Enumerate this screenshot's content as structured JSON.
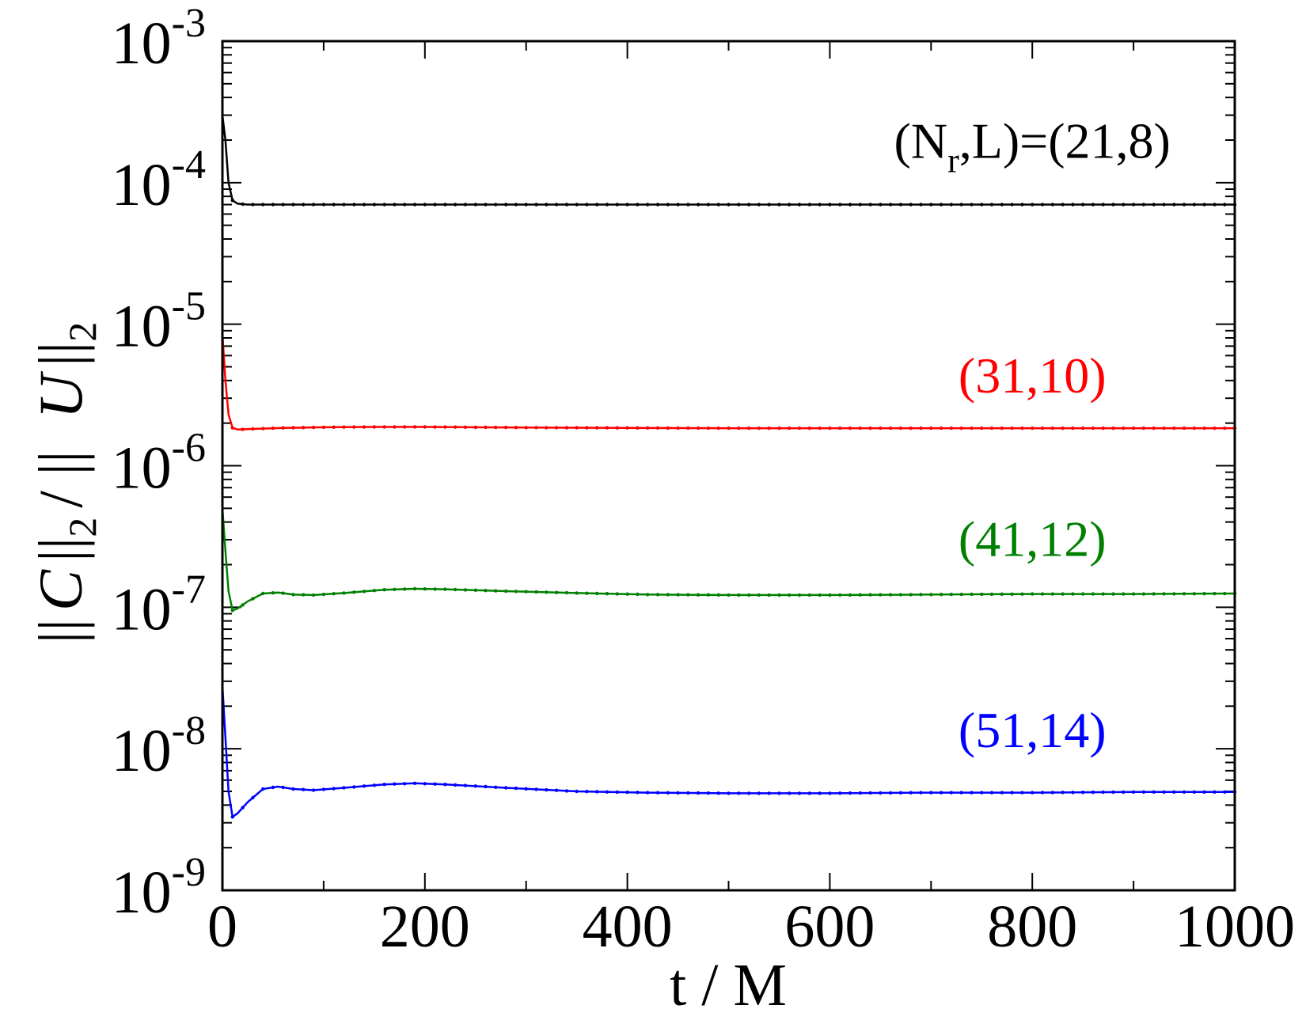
{
  "chart_data": {
    "type": "line",
    "xlabel": "t / M",
    "ylabel": {
      "prefix": "||",
      "c_symbol": "C",
      "mid": "||",
      "sub1": "2",
      "slash": "/ ||",
      "u_symbol": "U",
      "suffix": "||",
      "sub2": "2"
    },
    "xlim": [
      0,
      1000
    ],
    "ylim": [
      1e-09,
      0.001
    ],
    "yscale": "log",
    "xticks": [
      {
        "value": 0,
        "label": "0"
      },
      {
        "value": 200,
        "label": "200"
      },
      {
        "value": 400,
        "label": "400"
      },
      {
        "value": 600,
        "label": "600"
      },
      {
        "value": 800,
        "label": "800"
      },
      {
        "value": 1000,
        "label": "1000"
      }
    ],
    "yticks": [
      {
        "value": 0.001,
        "base": "10",
        "exp": "-3"
      },
      {
        "value": 0.0001,
        "base": "10",
        "exp": "-4"
      },
      {
        "value": 1e-05,
        "base": "10",
        "exp": "-5"
      },
      {
        "value": 1e-06,
        "base": "10",
        "exp": "-6"
      },
      {
        "value": 1e-07,
        "base": "10",
        "exp": "-7"
      },
      {
        "value": 1e-08,
        "base": "10",
        "exp": "-8"
      },
      {
        "value": 1e-09,
        "base": "10",
        "exp": "-9"
      }
    ],
    "grid": false,
    "series": [
      {
        "id": "nr21",
        "color": "#000000",
        "label_parts": [
          "(N",
          "r",
          ",L)=(21,8)"
        ],
        "label_anchor": {
          "x": 800,
          "y": 0.00015
        },
        "points": [
          [
            0,
            0.0003
          ],
          [
            3,
            0.0002
          ],
          [
            6,
            0.0001
          ],
          [
            10,
            7.5e-05
          ],
          [
            15,
            7.1e-05
          ],
          [
            25,
            7e-05
          ],
          [
            50,
            7e-05
          ],
          [
            100,
            7e-05
          ],
          [
            200,
            7e-05
          ],
          [
            300,
            7e-05
          ],
          [
            400,
            7e-05
          ],
          [
            500,
            7e-05
          ],
          [
            600,
            7e-05
          ],
          [
            700,
            7e-05
          ],
          [
            800,
            7e-05
          ],
          [
            900,
            7e-05
          ],
          [
            1000,
            7e-05
          ]
        ]
      },
      {
        "id": "nr31",
        "color": "#ff0000",
        "label_parts": [
          "(31,10)"
        ],
        "label_anchor": {
          "x": 800,
          "y": 3.3e-06
        },
        "points": [
          [
            0,
            8.5e-06
          ],
          [
            3,
            4e-06
          ],
          [
            6,
            2.3e-06
          ],
          [
            10,
            1.85e-06
          ],
          [
            15,
            1.8e-06
          ],
          [
            30,
            1.82e-06
          ],
          [
            60,
            1.85e-06
          ],
          [
            100,
            1.87e-06
          ],
          [
            150,
            1.88e-06
          ],
          [
            200,
            1.88e-06
          ],
          [
            300,
            1.86e-06
          ],
          [
            400,
            1.85e-06
          ],
          [
            500,
            1.84e-06
          ],
          [
            600,
            1.84e-06
          ],
          [
            700,
            1.84e-06
          ],
          [
            800,
            1.84e-06
          ],
          [
            900,
            1.84e-06
          ],
          [
            1000,
            1.84e-06
          ]
        ]
      },
      {
        "id": "nr41",
        "color": "#008000",
        "label_parts": [
          "(41,12)"
        ],
        "label_anchor": {
          "x": 800,
          "y": 2.3e-07
        },
        "points": [
          [
            0,
            5e-07
          ],
          [
            3,
            2.5e-07
          ],
          [
            6,
            1.3e-07
          ],
          [
            10,
            9.5e-08
          ],
          [
            15,
            9.8e-08
          ],
          [
            25,
            1.1e-07
          ],
          [
            40,
            1.25e-07
          ],
          [
            55,
            1.27e-07
          ],
          [
            70,
            1.23e-07
          ],
          [
            90,
            1.22e-07
          ],
          [
            120,
            1.26e-07
          ],
          [
            160,
            1.33e-07
          ],
          [
            190,
            1.35e-07
          ],
          [
            220,
            1.34e-07
          ],
          [
            280,
            1.3e-07
          ],
          [
            350,
            1.26e-07
          ],
          [
            420,
            1.23e-07
          ],
          [
            500,
            1.22e-07
          ],
          [
            600,
            1.22e-07
          ],
          [
            700,
            1.23e-07
          ],
          [
            800,
            1.24e-07
          ],
          [
            900,
            1.24e-07
          ],
          [
            1000,
            1.25e-07
          ]
        ]
      },
      {
        "id": "nr51",
        "color": "#0000ff",
        "label_parts": [
          "(51,14)"
        ],
        "label_anchor": {
          "x": 800,
          "y": 1.03e-08
        },
        "points": [
          [
            0,
            2.8e-08
          ],
          [
            3,
            1.2e-08
          ],
          [
            6,
            5e-09
          ],
          [
            10,
            3.3e-09
          ],
          [
            15,
            3.5e-09
          ],
          [
            25,
            4.2e-09
          ],
          [
            40,
            5.2e-09
          ],
          [
            55,
            5.4e-09
          ],
          [
            70,
            5.2e-09
          ],
          [
            90,
            5.1e-09
          ],
          [
            120,
            5.3e-09
          ],
          [
            160,
            5.6e-09
          ],
          [
            190,
            5.7e-09
          ],
          [
            220,
            5.6e-09
          ],
          [
            280,
            5.3e-09
          ],
          [
            350,
            5e-09
          ],
          [
            420,
            4.9e-09
          ],
          [
            500,
            4.85e-09
          ],
          [
            600,
            4.85e-09
          ],
          [
            700,
            4.9e-09
          ],
          [
            800,
            4.9e-09
          ],
          [
            900,
            4.95e-09
          ],
          [
            1000,
            4.95e-09
          ]
        ]
      }
    ]
  }
}
